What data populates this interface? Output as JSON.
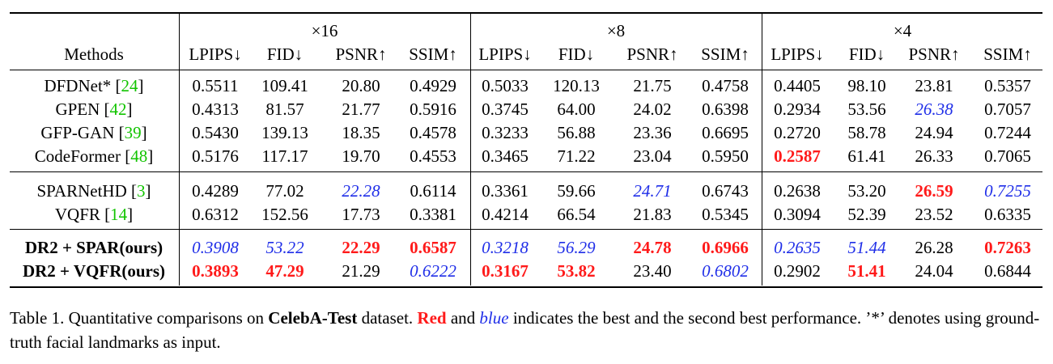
{
  "table": {
    "methods_header": "Methods",
    "groups": [
      "×16",
      "×8",
      "×4"
    ],
    "metrics": [
      "LPIPS↓",
      "FID↓",
      "PSNR↑",
      "SSIM↑"
    ],
    "sections": [
      [
        {
          "name": "DFDNet* [",
          "ref": "24",
          "close": "]",
          "bold": false,
          "values": [
            "0.5511",
            "109.41",
            "20.80",
            "0.4929",
            "0.5033",
            "120.13",
            "21.75",
            "0.4758",
            "0.4405",
            "98.10",
            "23.81",
            "0.5357"
          ],
          "styles": [
            "",
            "",
            "",
            "",
            "",
            "",
            "",
            "",
            "",
            "",
            "",
            ""
          ]
        },
        {
          "name": "GPEN [",
          "ref": "42",
          "close": "]",
          "bold": false,
          "values": [
            "0.4313",
            "81.57",
            "21.77",
            "0.5916",
            "0.3745",
            "64.00",
            "24.02",
            "0.6398",
            "0.2934",
            "53.56",
            "26.38",
            "0.7057"
          ],
          "styles": [
            "",
            "",
            "",
            "",
            "",
            "",
            "",
            "",
            "",
            "",
            "second",
            ""
          ]
        },
        {
          "name": "GFP-GAN [",
          "ref": "39",
          "close": "]",
          "bold": false,
          "values": [
            "0.5430",
            "139.13",
            "18.35",
            "0.4578",
            "0.3233",
            "56.88",
            "23.36",
            "0.6695",
            "0.2720",
            "58.78",
            "24.94",
            "0.7244"
          ],
          "styles": [
            "",
            "",
            "",
            "",
            "",
            "",
            "",
            "",
            "",
            "",
            "",
            ""
          ]
        },
        {
          "name": "CodeFormer [",
          "ref": "48",
          "close": "]",
          "bold": false,
          "values": [
            "0.5176",
            "117.17",
            "19.70",
            "0.4553",
            "0.3465",
            "71.22",
            "23.04",
            "0.5950",
            "0.2587",
            "61.41",
            "26.33",
            "0.7065"
          ],
          "styles": [
            "",
            "",
            "",
            "",
            "",
            "",
            "",
            "",
            "best",
            "",
            "",
            ""
          ]
        }
      ],
      [
        {
          "name": "SPARNetHD [",
          "ref": "3",
          "close": "]",
          "bold": false,
          "values": [
            "0.4289",
            "77.02",
            "22.28",
            "0.6114",
            "0.3361",
            "59.66",
            "24.71",
            "0.6743",
            "0.2638",
            "53.20",
            "26.59",
            "0.7255"
          ],
          "styles": [
            "",
            "",
            "second",
            "",
            "",
            "",
            "second",
            "",
            "",
            "",
            "best",
            "second"
          ]
        },
        {
          "name": "VQFR [",
          "ref": "14",
          "close": "]",
          "bold": false,
          "values": [
            "0.6312",
            "152.56",
            "17.73",
            "0.3381",
            "0.4214",
            "66.54",
            "21.83",
            "0.5345",
            "0.3094",
            "52.39",
            "23.52",
            "0.6335"
          ],
          "styles": [
            "",
            "",
            "",
            "",
            "",
            "",
            "",
            "",
            "",
            "",
            "",
            ""
          ]
        }
      ],
      [
        {
          "name": "DR2 + SPAR(ours)",
          "ref": "",
          "close": "",
          "bold": true,
          "values": [
            "0.3908",
            "53.22",
            "22.29",
            "0.6587",
            "0.3218",
            "56.29",
            "24.78",
            "0.6966",
            "0.2635",
            "51.44",
            "26.28",
            "0.7263"
          ],
          "styles": [
            "second",
            "second",
            "best",
            "best",
            "second",
            "second",
            "best",
            "best",
            "second",
            "second",
            "",
            "best"
          ]
        },
        {
          "name": "DR2 + VQFR(ours)",
          "ref": "",
          "close": "",
          "bold": true,
          "values": [
            "0.3893",
            "47.29",
            "21.29",
            "0.6222",
            "0.3167",
            "53.82",
            "23.40",
            "0.6802",
            "0.2902",
            "51.41",
            "24.04",
            "0.6844"
          ],
          "styles": [
            "best",
            "best",
            "",
            "second",
            "best",
            "best",
            "",
            "second",
            "",
            "best",
            "",
            ""
          ]
        }
      ]
    ]
  },
  "caption": {
    "prefix": "Table 1. Quantitative comparisons on ",
    "dataset": "CelebA-Test",
    "mid1": " dataset. ",
    "red_word": "Red",
    "mid2": " and ",
    "blue_word": "blue",
    "mid3": " indicates the best and the second best performance. ’*’ denotes using ground-truth facial landmarks as input."
  },
  "colors": {
    "best": "#ff1a1a",
    "second": "#1f2ee8",
    "reference": "#12c400"
  }
}
